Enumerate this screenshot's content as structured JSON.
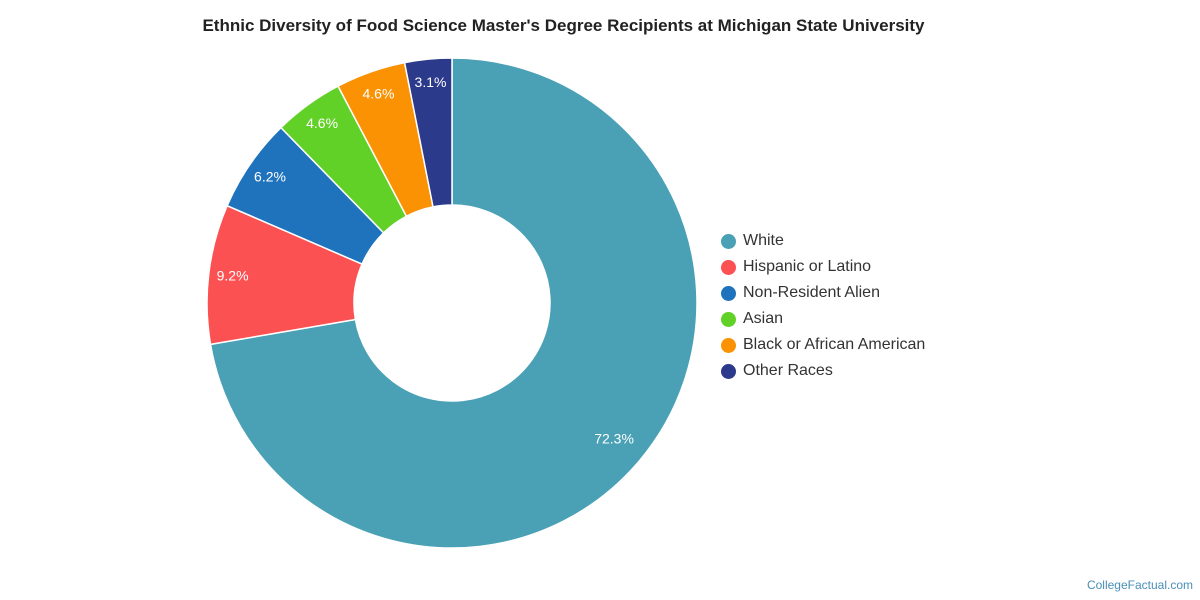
{
  "chart_data": {
    "type": "pie",
    "title": "Ethnic Diversity of Food Science Master's Degree Recipients at Michigan State University",
    "categories": [
      "White",
      "Hispanic or Latino",
      "Non-Resident Alien",
      "Asian",
      "Black or African American",
      "Other Races"
    ],
    "values": [
      72.3,
      9.2,
      6.2,
      4.6,
      4.6,
      3.1
    ],
    "labels": [
      "72.3%",
      "9.2%",
      "6.2%",
      "4.6%",
      "4.6%",
      "3.1%"
    ],
    "colors": [
      "#4aa0b5",
      "#fc5153",
      "#1f73bd",
      "#62d127",
      "#fa9204",
      "#2c3a8b"
    ],
    "donut": true,
    "legend_position": "right"
  },
  "source": "CollegeFactual.com"
}
